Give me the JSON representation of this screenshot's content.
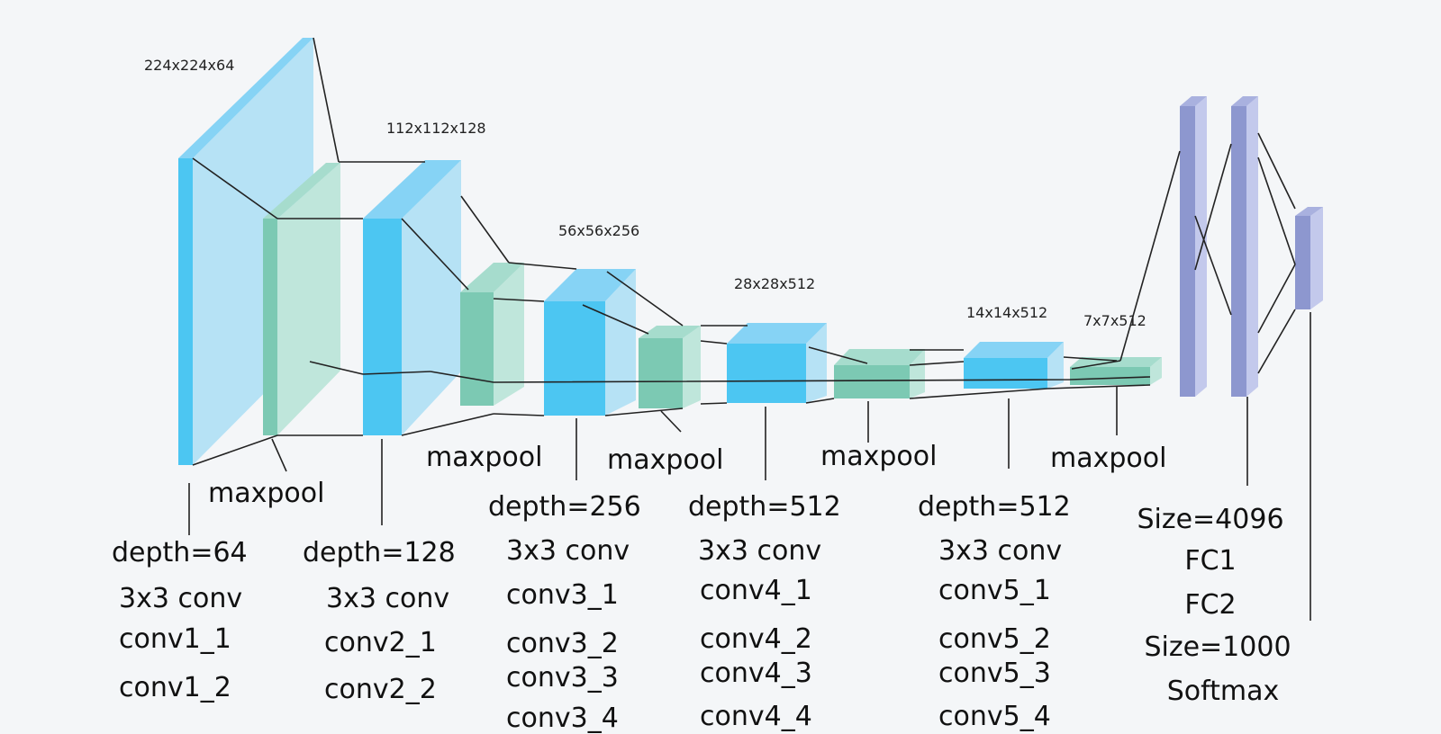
{
  "colors": {
    "background": "#f4f6f8",
    "conv_front": "#4cc6f2",
    "conv_side": "#b6e2f5",
    "conv_top": "#86d3f5",
    "pool_front": "#7cc9b3",
    "pool_side": "#bfe6db",
    "pool_top": "#a6dccd",
    "fc_front": "#8d97cf",
    "fc_side": "#c3c9ec",
    "fc_top": "#a9b1df",
    "line": "#222222"
  },
  "dimensions": {
    "block1": "224x224x64",
    "block2": "112x112x128",
    "block3": "56x56x256",
    "block4": "28x28x512",
    "block5": "14x14x512",
    "pool5": "7x7x512"
  },
  "labels": {
    "maxpool1": "maxpool",
    "maxpool2": "maxpool",
    "maxpool3": "maxpool",
    "maxpool4": "maxpool",
    "maxpool5": "maxpool",
    "stage1": {
      "depth": "depth=64",
      "conv": "3x3 conv",
      "layers": [
        "conv1_1",
        "conv1_2"
      ]
    },
    "stage2": {
      "depth": "depth=128",
      "conv": "3x3 conv",
      "layers": [
        "conv2_1",
        "conv2_2"
      ]
    },
    "stage3": {
      "depth": "depth=256",
      "conv": "3x3 conv",
      "layers": [
        "conv3_1",
        "conv3_2",
        "conv3_3",
        "conv3_4"
      ]
    },
    "stage4": {
      "depth": "depth=512",
      "conv": "3x3 conv",
      "layers": [
        "conv4_1",
        "conv4_2",
        "conv4_3",
        "conv4_4"
      ]
    },
    "stage5": {
      "depth": "depth=512",
      "conv": "3x3 conv",
      "layers": [
        "conv5_1",
        "conv5_2",
        "conv5_3",
        "conv5_4"
      ]
    },
    "fc": {
      "size1": "Size=4096",
      "fc1": "FC1",
      "fc2": "FC2",
      "size2": "Size=1000",
      "softmax": "Softmax"
    }
  }
}
